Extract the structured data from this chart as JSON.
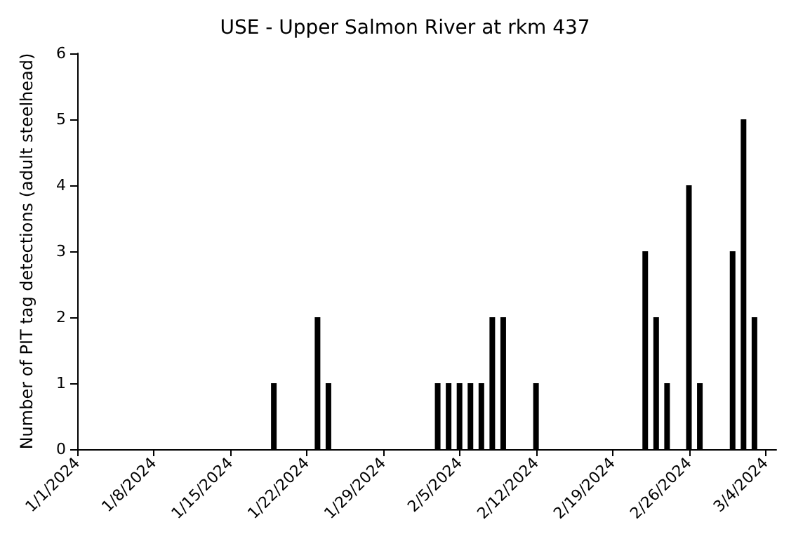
{
  "chart_data": {
    "type": "bar",
    "title": "USE - Upper Salmon River at rkm 437",
    "ylabel": "Number of PIT tag detections (adult steelhead)",
    "x": [
      "2024-01-19",
      "2024-01-23",
      "2024-01-24",
      "2024-02-03",
      "2024-02-04",
      "2024-02-05",
      "2024-02-06",
      "2024-02-07",
      "2024-02-08",
      "2024-02-09",
      "2024-02-12",
      "2024-02-22",
      "2024-02-23",
      "2024-02-24",
      "2024-02-26",
      "2024-02-27",
      "2024-03-01",
      "2024-03-02",
      "2024-03-03"
    ],
    "values": [
      1,
      2,
      1,
      1,
      1,
      1,
      1,
      1,
      2,
      2,
      1,
      3,
      2,
      1,
      4,
      1,
      3,
      5,
      2
    ],
    "color": "#000000",
    "xlim": [
      "2024-01-01",
      "2024-03-05"
    ],
    "xticks": [
      {
        "value": "2024-01-01",
        "label": "1/1/2024"
      },
      {
        "value": "2024-01-08",
        "label": "1/8/2024"
      },
      {
        "value": "2024-01-15",
        "label": "1/15/2024"
      },
      {
        "value": "2024-01-22",
        "label": "1/22/2024"
      },
      {
        "value": "2024-01-29",
        "label": "1/29/2024"
      },
      {
        "value": "2024-02-05",
        "label": "2/5/2024"
      },
      {
        "value": "2024-02-12",
        "label": "2/12/2024"
      },
      {
        "value": "2024-02-19",
        "label": "2/19/2024"
      },
      {
        "value": "2024-02-26",
        "label": "2/26/2024"
      },
      {
        "value": "2024-03-04",
        "label": "3/4/2024"
      }
    ],
    "ylim": [
      0,
      6
    ],
    "yticks": [
      0,
      1,
      2,
      3,
      4,
      5,
      6
    ]
  }
}
